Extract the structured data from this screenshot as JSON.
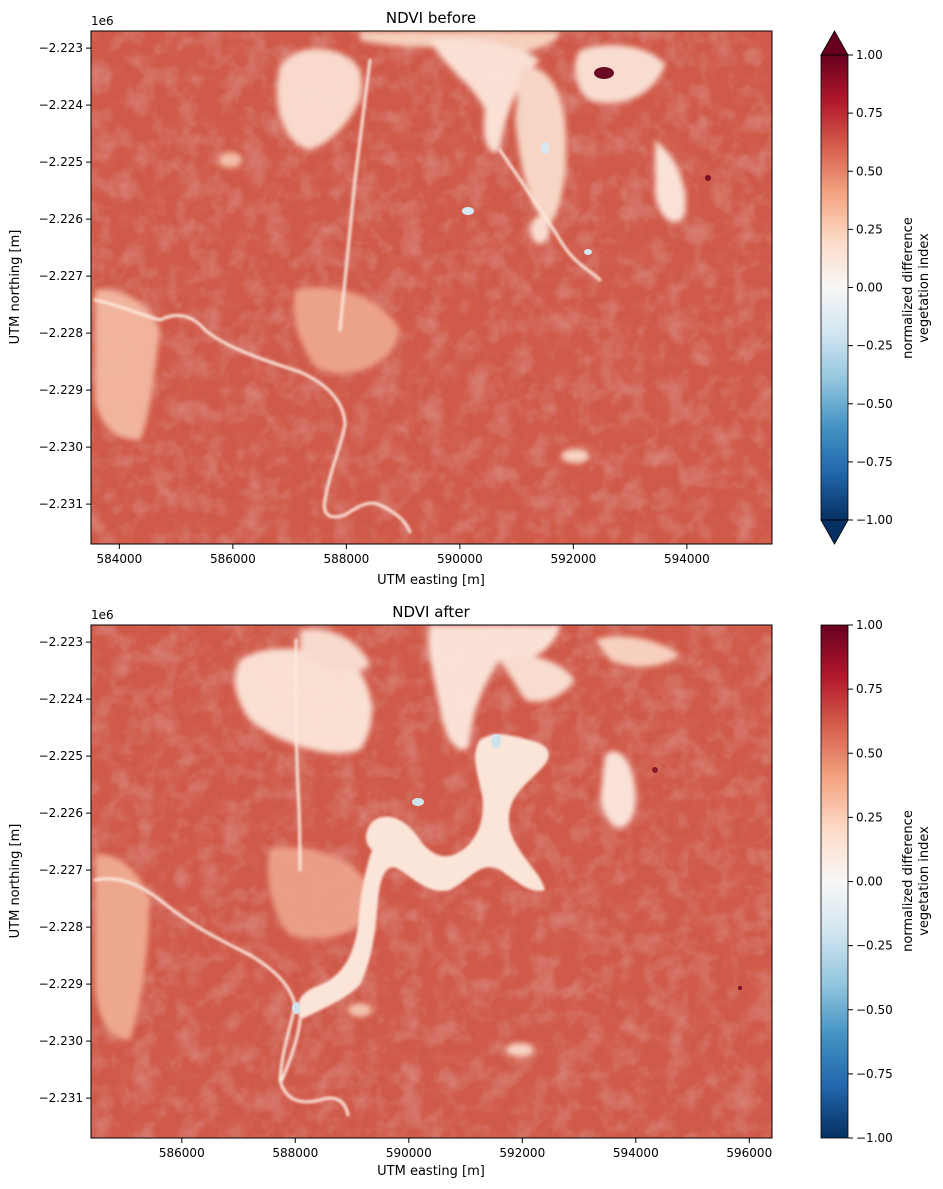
{
  "chart_data": [
    {
      "type": "heatmap",
      "title": "NDVI before",
      "xlabel": "UTM easting [m]",
      "ylabel": "UTM northing [m]",
      "y_offset_label": "1e6",
      "xlim": [
        583500,
        595500
      ],
      "ylim": [
        -2.2317,
        -2.2227
      ],
      "x_ticks": [
        584000,
        586000,
        588000,
        590000,
        592000,
        594000
      ],
      "x_tick_labels": [
        "584000",
        "586000",
        "588000",
        "590000",
        "592000",
        "594000"
      ],
      "y_ticks": [
        -2.223,
        -2.224,
        -2.225,
        -2.226,
        -2.227,
        -2.228,
        -2.229,
        -2.23,
        -2.231
      ],
      "y_tick_labels": [
        "−2.223",
        "−2.224",
        "−2.225",
        "−2.226",
        "−2.227",
        "−2.228",
        "−2.229",
        "−2.230",
        "−2.231"
      ],
      "colorbar": {
        "label_line1": "normalized difference",
        "label_line2": "vegetation index",
        "colormap": "RdBu_r",
        "vmin": -1.0,
        "vmax": 1.0,
        "extend": "both",
        "ticks": [
          1.0,
          0.75,
          0.5,
          0.25,
          0.0,
          -0.25,
          -0.5,
          -0.75,
          -1.0
        ],
        "tick_labels": [
          "1.00",
          "0.75",
          "0.50",
          "0.25",
          "0.00",
          "−0.25",
          "−0.50",
          "−0.75",
          "−1.00"
        ]
      },
      "dominant_value": 0.5
    },
    {
      "type": "heatmap",
      "title": "NDVI after",
      "xlabel": "UTM easting [m]",
      "ylabel": "UTM northing [m]",
      "y_offset_label": "1e6",
      "xlim": [
        584400,
        596400
      ],
      "ylim": [
        -2.2317,
        -2.2227
      ],
      "x_ticks": [
        586000,
        588000,
        590000,
        592000,
        594000,
        596000
      ],
      "x_tick_labels": [
        "586000",
        "588000",
        "590000",
        "592000",
        "594000",
        "596000"
      ],
      "y_ticks": [
        -2.223,
        -2.224,
        -2.225,
        -2.226,
        -2.227,
        -2.228,
        -2.229,
        -2.23,
        -2.231
      ],
      "y_tick_labels": [
        "−2.223",
        "−2.224",
        "−2.225",
        "−2.226",
        "−2.227",
        "−2.228",
        "−2.229",
        "−2.230",
        "−2.231"
      ],
      "colorbar": {
        "label_line1": "normalized difference",
        "label_line2": "vegetation index",
        "colormap": "RdBu_r",
        "vmin": -1.0,
        "vmax": 1.0,
        "extend": "neither",
        "ticks": [
          1.0,
          0.75,
          0.5,
          0.25,
          0.0,
          -0.25,
          -0.5,
          -0.75,
          -1.0
        ],
        "tick_labels": [
          "1.00",
          "0.75",
          "0.50",
          "0.25",
          "0.00",
          "−0.25",
          "−0.50",
          "−0.75",
          "−1.00"
        ]
      },
      "dominant_value": 0.5
    }
  ]
}
